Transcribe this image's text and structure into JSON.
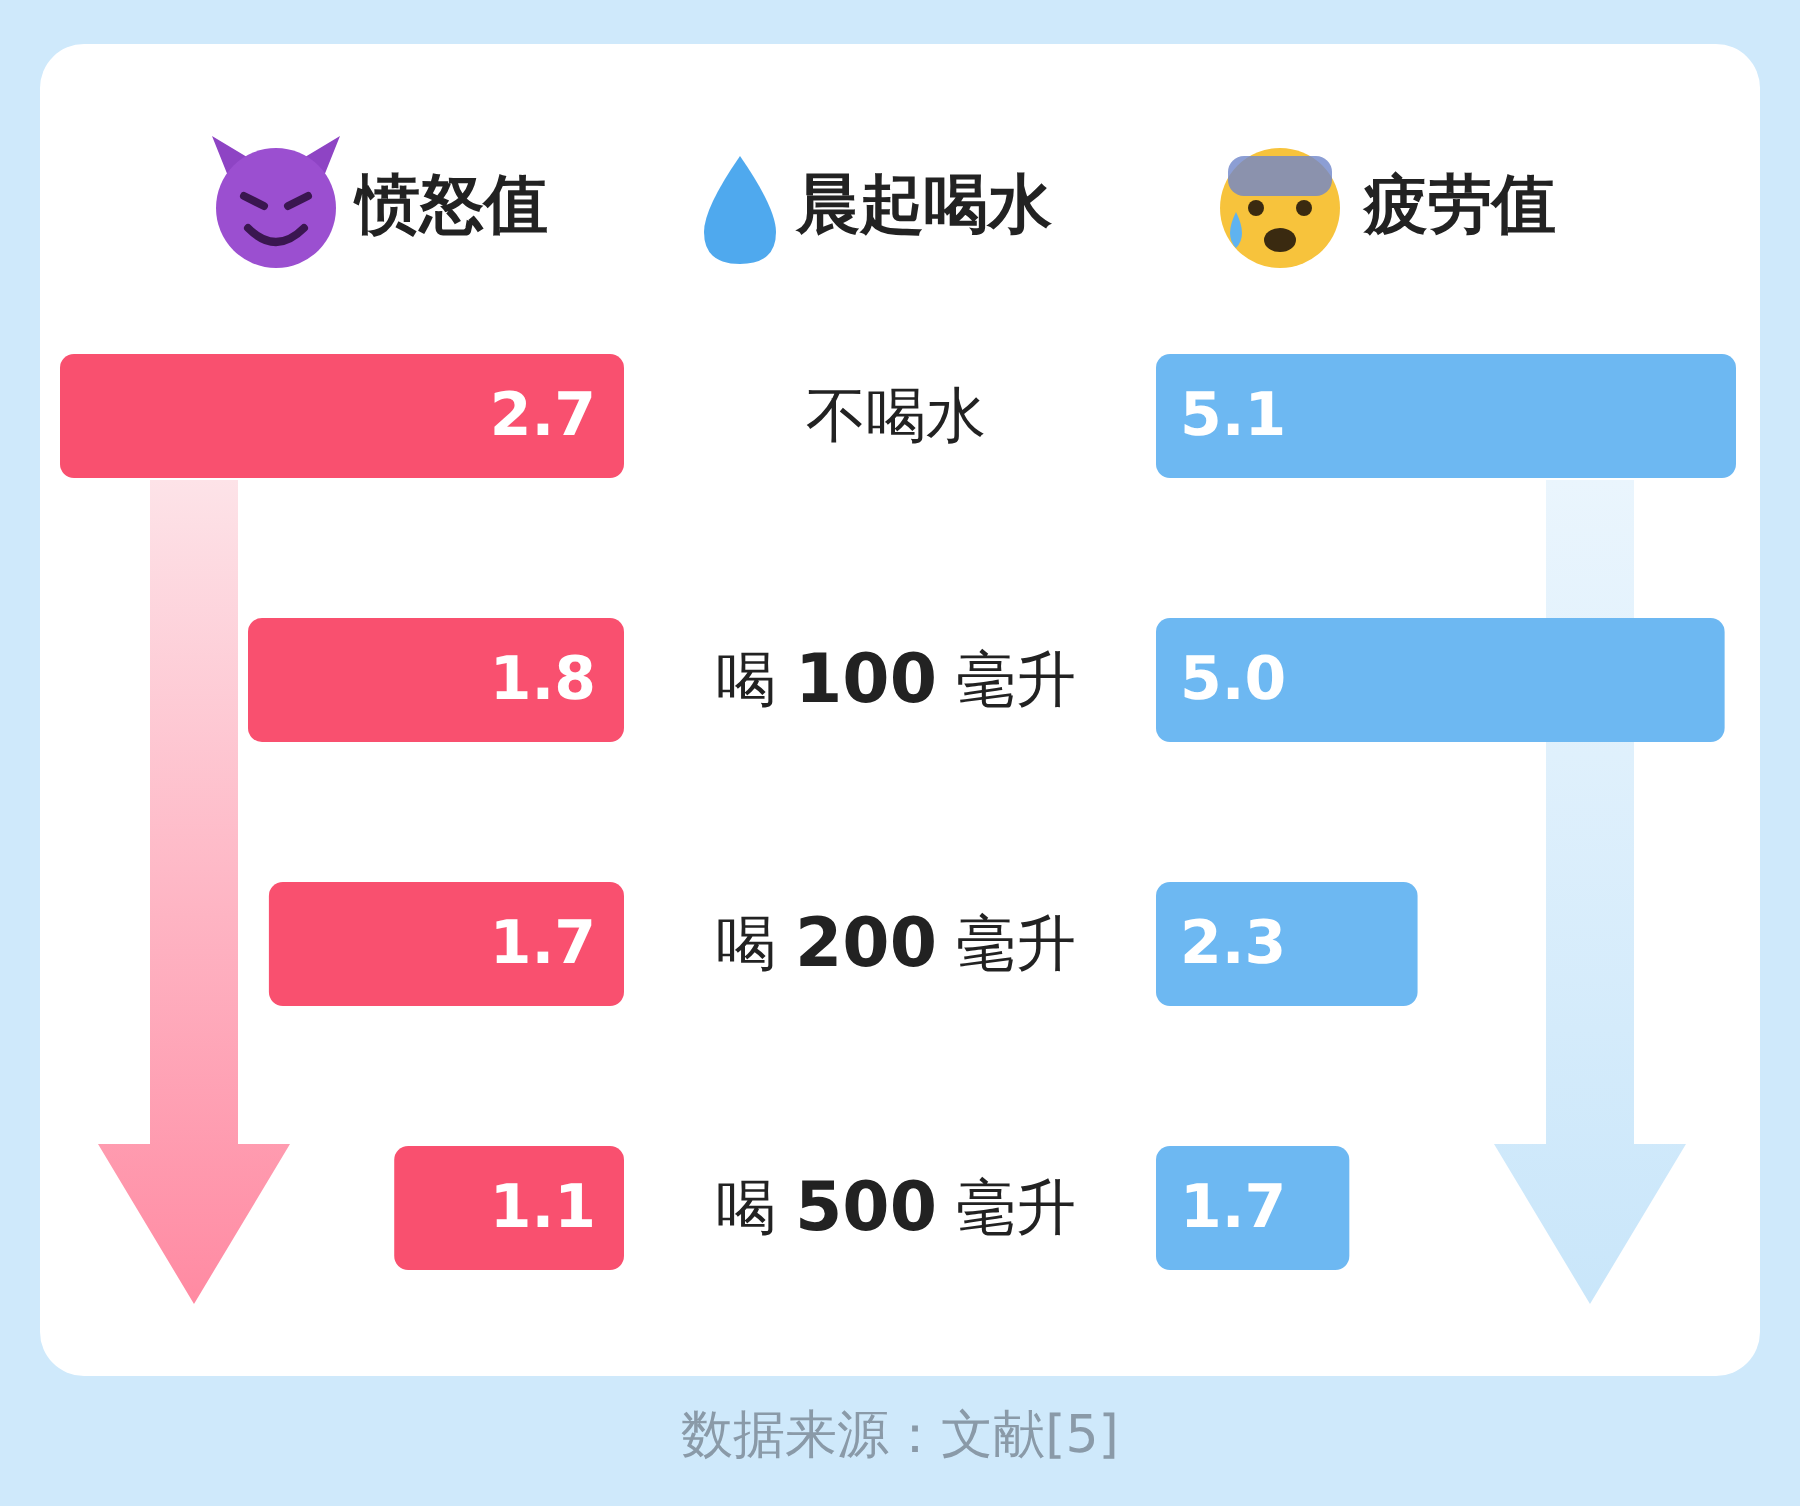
{
  "chart_data": [
    {
      "type": "bar",
      "orientation": "horizontal",
      "title": "愤怒值",
      "ylabel": "晨起喝水",
      "categories": [
        "不喝水",
        "喝 100 毫升",
        "喝 200 毫升",
        "喝 500 毫升"
      ],
      "values": [
        2.7,
        1.8,
        1.7,
        1.1
      ],
      "color": "#f9506f",
      "data_labels": true,
      "annotations": [
        "数据来源：文献[5]"
      ]
    },
    {
      "type": "bar",
      "orientation": "horizontal",
      "title": "疲劳值",
      "categories": [
        null,
        null,
        null,
        null
      ],
      "values": [
        5.1,
        5.0,
        2.3,
        1.7
      ],
      "value_labels": [
        "5.1",
        "5.0",
        "2.3",
        "1.7"
      ],
      "color": "#6db8f2",
      "data_labels": true
    }
  ]
}
